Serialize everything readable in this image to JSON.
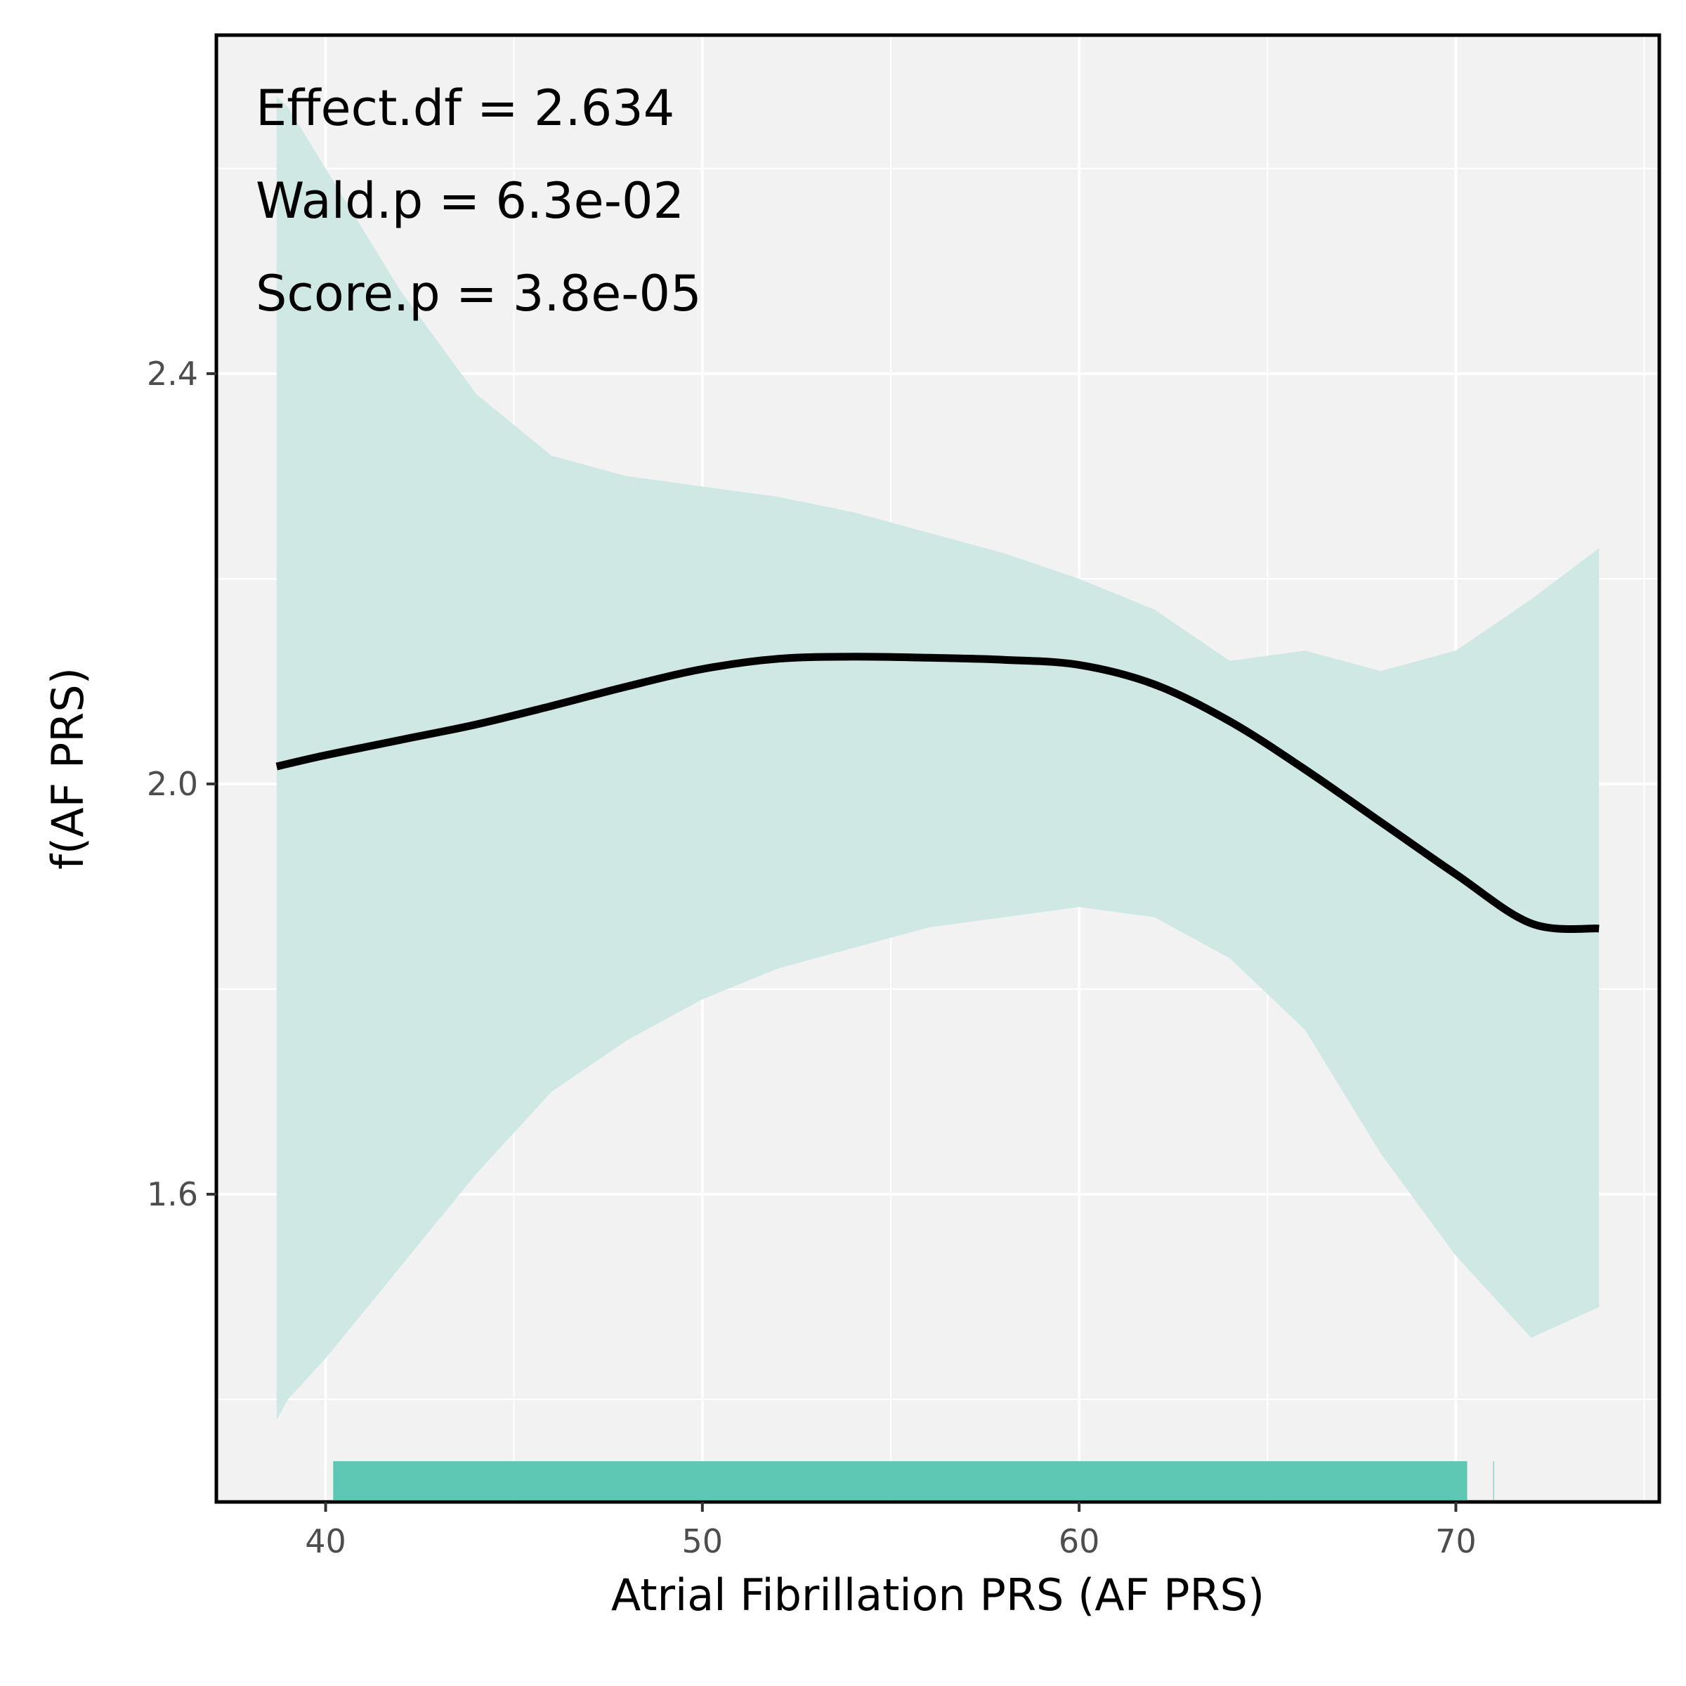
{
  "chart_data": {
    "type": "line",
    "title": "",
    "xlabel": "Atrial Fibrillation PRS (AF PRS)",
    "ylabel": "f(AF PRS)",
    "xlim": [
      37.1,
      75.4
    ],
    "ylim": [
      1.3,
      2.73
    ],
    "x_ticks": [
      40,
      50,
      60,
      70
    ],
    "x_tick_labels": [
      "40",
      "50",
      "60",
      "70"
    ],
    "y_ticks": [
      1.6,
      2.0,
      2.4
    ],
    "y_tick_labels": [
      "1.6",
      "2.0",
      "2.4"
    ],
    "x_minor_gridlines": [
      45,
      55,
      65,
      75
    ],
    "y_minor_gridlines": [
      1.4,
      1.8,
      2.2,
      2.6
    ],
    "grid": true,
    "annotations": [
      "Effect.df = 2.634",
      "Wald.p = 6.3e-02",
      "Score.p = 3.8e-05"
    ],
    "series": [
      {
        "type": "line",
        "x": [
          38.7,
          40,
          42,
          44,
          46,
          48,
          50,
          52,
          54,
          56,
          58,
          60,
          62,
          64,
          66,
          68,
          70,
          72,
          73.8
        ],
        "y": [
          2.017,
          2.028,
          2.043,
          2.058,
          2.076,
          2.095,
          2.112,
          2.122,
          2.124,
          2.123,
          2.121,
          2.116,
          2.097,
          2.061,
          2.014,
          1.963,
          1.912,
          1.864,
          1.859
        ]
      }
    ],
    "band": {
      "x": [
        38.7,
        39,
        40,
        42,
        44,
        46,
        48,
        50,
        52,
        54,
        56,
        58,
        60,
        62,
        64,
        66,
        68,
        70,
        72,
        73.8
      ],
      "upper": [
        2.67,
        2.66,
        2.6,
        2.48,
        2.38,
        2.32,
        2.3,
        2.29,
        2.28,
        2.265,
        2.245,
        2.225,
        2.2,
        2.17,
        2.12,
        2.13,
        2.11,
        2.13,
        2.18,
        2.23
      ],
      "lower": [
        1.38,
        1.4,
        1.44,
        1.53,
        1.62,
        1.7,
        1.75,
        1.79,
        1.82,
        1.84,
        1.86,
        1.87,
        1.88,
        1.87,
        1.83,
        1.76,
        1.64,
        1.54,
        1.46,
        1.49
      ]
    },
    "rug": {
      "x_min": 40.2,
      "x_max": 70.3,
      "outlier": 71.0
    },
    "colors": {
      "panel_background": "#f2f2f2",
      "gridline": "#ffffff",
      "line": "#000000",
      "band": "#cfe8e4",
      "rug": "#5ec8b5",
      "border": "#000000"
    }
  }
}
